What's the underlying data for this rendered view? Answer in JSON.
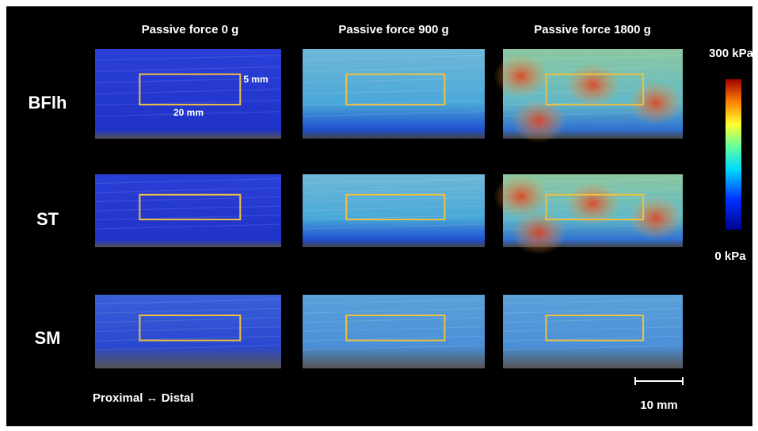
{
  "columns": [
    "Passive force 0 g",
    "Passive force 900 g",
    "Passive force 1800 g"
  ],
  "rows": [
    "BFlh",
    "ST",
    "SM"
  ],
  "colorbar": {
    "max_label": "300 kPa",
    "min_label": "0 kPa"
  },
  "annotations": {
    "thickness": "5 mm",
    "length": "20 mm",
    "orientation": "Proximal ↔ Distal",
    "scale_bar": "10 mm"
  }
}
